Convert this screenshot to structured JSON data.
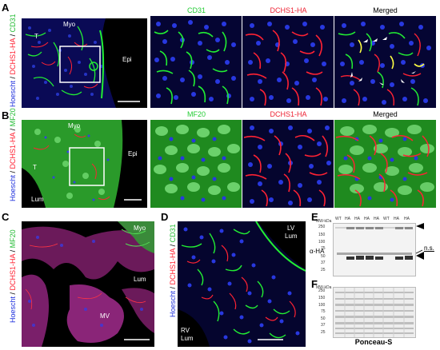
{
  "panel_letters": [
    "A",
    "B",
    "C",
    "D",
    "E",
    "F"
  ],
  "panel_a": {
    "ylabel_parts": [
      "Hoescht",
      " / ",
      "DCHS1-HA",
      " / ",
      "CD31"
    ],
    "labels": {
      "myo": "Myo",
      "epi": "Epi",
      "t": "T"
    },
    "headers": [
      "CD31",
      "DCHS1-HA",
      "Merged"
    ]
  },
  "panel_b": {
    "ylabel_parts": [
      "Hoescht",
      " / ",
      "DCHS1-HA",
      " / ",
      "MF20"
    ],
    "labels": {
      "myo": "Myo",
      "epi": "Epi",
      "t": "T",
      "lum": "Lum"
    },
    "headers": [
      "MF20",
      "DCHS1-HA",
      "Merged"
    ]
  },
  "panel_c": {
    "ylabel_parts": [
      "Hoescht",
      " / ",
      "DCHS1-HA",
      " / ",
      "MF20"
    ],
    "labels": {
      "myo": "Myo",
      "lum": "Lum",
      "mv": "MV"
    }
  },
  "panel_d": {
    "ylabel_parts": [
      "Hoescht",
      " / ",
      "DCHS1-HA",
      " / ",
      "CD31"
    ],
    "labels": {
      "lv": "LV",
      "lv2": "Lum",
      "rv": "RV",
      "rv2": "Lum"
    }
  },
  "panel_e": {
    "lanes": [
      "WT",
      "HA",
      "HA",
      "HA",
      "HA",
      "WT",
      "HA",
      "HA"
    ],
    "mw_title": "MW-kDa",
    "mw_marks": [
      "250",
      "150",
      "100",
      "75",
      "50",
      "37",
      "25"
    ],
    "side_label": "α-HA",
    "ns_label": "n.s."
  },
  "panel_f": {
    "mw_title": "MW-kDa",
    "mw_marks": [
      "250",
      "150",
      "100",
      "75",
      "50",
      "37",
      "25"
    ],
    "caption": "Ponceau-S"
  },
  "colors": {
    "blue": "#2233dd",
    "red": "#ff2233",
    "green": "#22ee33",
    "white": "#ffffff"
  }
}
